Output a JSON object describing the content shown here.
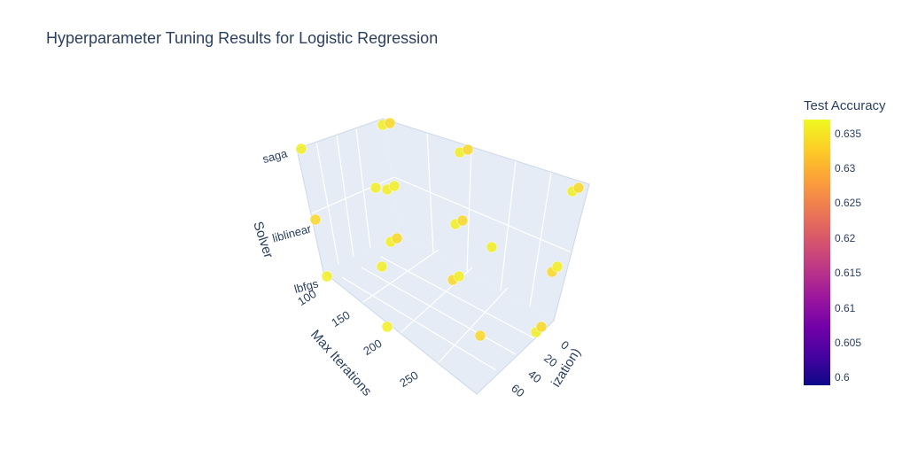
{
  "chart_data": {
    "type": "scatter3d",
    "title": "Hyperparameter Tuning Results for Logistic Regression",
    "axes": {
      "x": {
        "label_visible": "ization)",
        "ticks": [
          "0",
          "20",
          "40",
          "60"
        ]
      },
      "y": {
        "label": "Max Iterations",
        "ticks": [
          "100",
          "150",
          "200",
          "250"
        ]
      },
      "z": {
        "label": "Solver",
        "ticks": [
          "lbfgs",
          "liblinear",
          "saga"
        ]
      }
    },
    "colorbar": {
      "title": "Test Accuracy",
      "ticks": [
        "0.635",
        "0.63",
        "0.625",
        "0.62",
        "0.615",
        "0.61",
        "0.605",
        "0.6"
      ],
      "range": [
        0.599,
        0.637
      ],
      "colorscale": [
        "#0d0887",
        "#46039f",
        "#7201a8",
        "#9c179e",
        "#bd3786",
        "#d8576b",
        "#ed7953",
        "#fb9f3a",
        "#fdca26",
        "#f0f921"
      ]
    },
    "points_note": "accuracy values ~0.633-0.637; all markers render yellow",
    "points": [
      {
        "solver": "saga",
        "acc": 0.636
      },
      {
        "solver": "saga",
        "acc": 0.636
      },
      {
        "solver": "saga",
        "acc": 0.634
      },
      {
        "solver": "saga",
        "acc": 0.636
      },
      {
        "solver": "saga",
        "acc": 0.634
      },
      {
        "solver": "saga",
        "acc": 0.636
      },
      {
        "solver": "saga",
        "acc": 0.634
      },
      {
        "solver": "liblinear",
        "acc": 0.636
      },
      {
        "solver": "liblinear",
        "acc": 0.636
      },
      {
        "solver": "liblinear",
        "acc": 0.636
      },
      {
        "solver": "liblinear",
        "acc": 0.634
      },
      {
        "solver": "liblinear",
        "acc": 0.636
      },
      {
        "solver": "liblinear",
        "acc": 0.634
      },
      {
        "solver": "liblinear",
        "acc": 0.636
      },
      {
        "solver": "liblinear",
        "acc": 0.634
      },
      {
        "solver": "lbfgs",
        "acc": 0.636
      },
      {
        "solver": "lbfgs",
        "acc": 0.636
      },
      {
        "solver": "lbfgs",
        "acc": 0.636
      },
      {
        "solver": "lbfgs",
        "acc": 0.634
      },
      {
        "solver": "lbfgs",
        "acc": 0.636
      },
      {
        "solver": "lbfgs",
        "acc": 0.634
      },
      {
        "solver": "lbfgs",
        "acc": 0.636
      },
      {
        "solver": "lbfgs",
        "acc": 0.636
      },
      {
        "solver": "lbfgs",
        "acc": 0.634
      },
      {
        "solver": "lbfgs",
        "acc": 0.636
      },
      {
        "solver": "lbfgs",
        "acc": 0.634
      }
    ]
  }
}
